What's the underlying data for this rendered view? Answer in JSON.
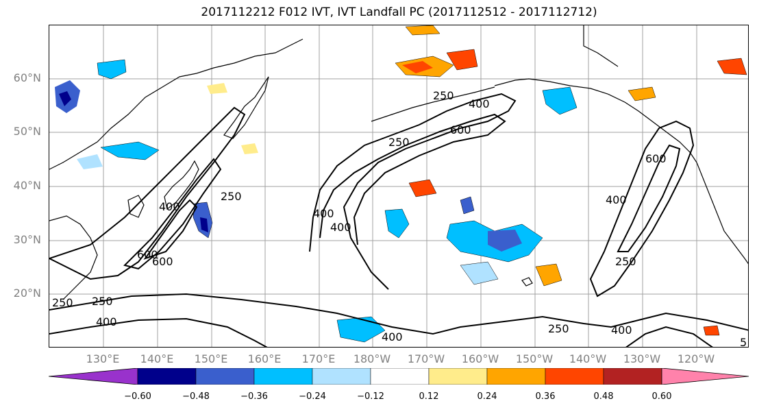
{
  "title": "2017112212 F012 IVT, IVT Landfall PC (2017112512 - 2017112712)",
  "lat_labels": [
    "60°N",
    "50°N",
    "40°N",
    "30°N",
    "20°N"
  ],
  "lon_labels": [
    "130°E",
    "140°E",
    "150°E",
    "160°E",
    "170°E",
    "180°W",
    "170°W",
    "160°W",
    "150°W",
    "140°W",
    "130°W",
    "120°W"
  ],
  "colorbar": {
    "ticks": [
      "−0.60",
      "−0.48",
      "−0.36",
      "−0.24",
      "−0.12",
      "0.12",
      "0.24",
      "0.36",
      "0.48",
      "0.60"
    ],
    "colors": [
      "#9932cc",
      "#00008b",
      "#3a5fcd",
      "#00bfff",
      "#b0e2ff",
      "#ffffff",
      "#ffec8b",
      "#ffa500",
      "#ff4500",
      "#b22222",
      "#ff82ab"
    ]
  },
  "contour_labels": [
    "250",
    "400",
    "600",
    "400",
    "250",
    "600",
    "250",
    "400",
    "400",
    "250",
    "400",
    "400",
    "600",
    "400",
    "250",
    "600",
    "250",
    "400",
    "250",
    "5"
  ],
  "colors": {
    "coast": "#000000",
    "grid": "#a0a0a0",
    "contour": "#000000"
  }
}
